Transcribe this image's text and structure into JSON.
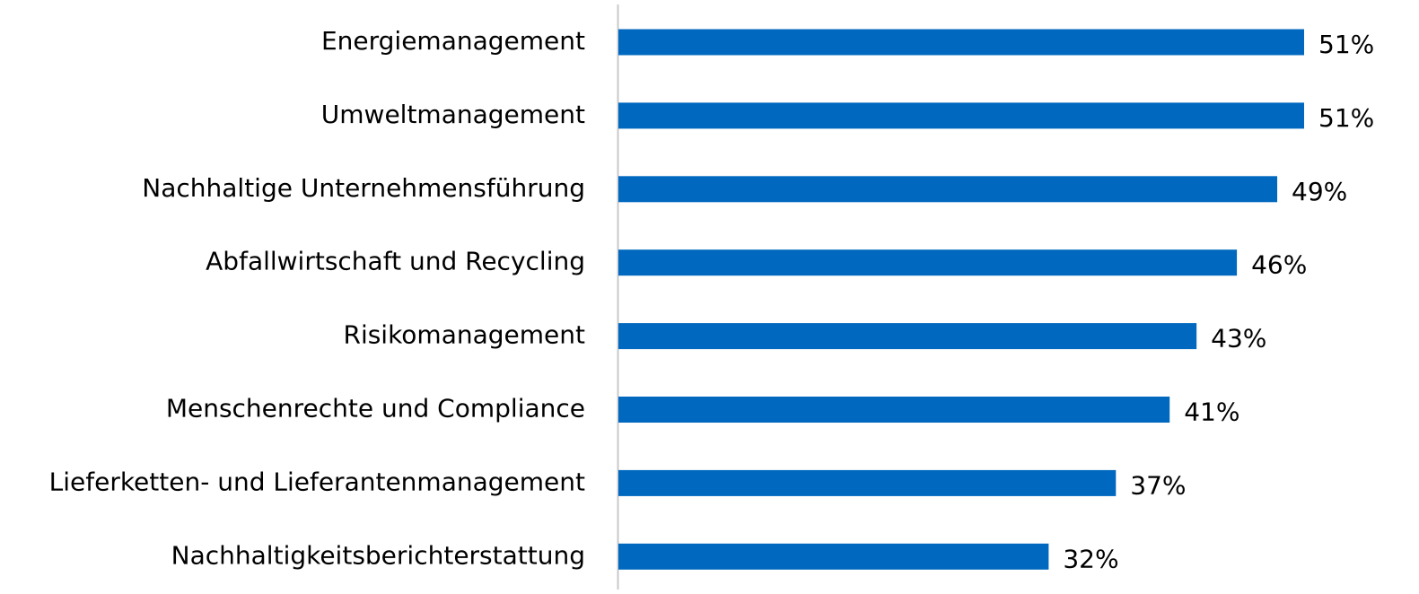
{
  "chart_data": {
    "type": "bar",
    "orientation": "horizontal",
    "categories": [
      "Energiemanagement",
      "Umweltmanagement",
      "Nachhaltige Unternehmensführung",
      "Abfallwirtschaft und Recycling",
      "Risikomanagement",
      "Menschenrechte und Compliance",
      "Lieferketten- und Lieferantenmanagement",
      "Nachhaltigkeitsberichterstattung"
    ],
    "values": [
      51,
      51,
      49,
      46,
      43,
      41,
      37,
      32
    ],
    "value_labels": [
      "51%",
      "51%",
      "49%",
      "46%",
      "43%",
      "41%",
      "37%",
      "32%"
    ],
    "color": "#0068bf"
  }
}
